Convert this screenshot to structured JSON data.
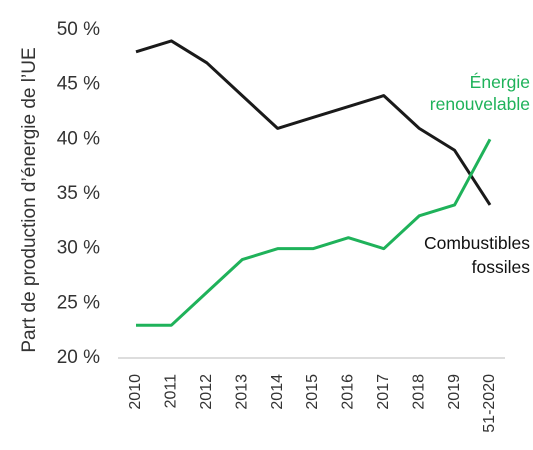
{
  "chart_data": {
    "type": "line",
    "y_label": "Part de production d’énergie de l’UE",
    "categories": [
      "2010",
      "2011",
      "2012",
      "2013",
      "2014",
      "2015",
      "2016",
      "2017",
      "2018",
      "2019",
      "51-2020"
    ],
    "series": [
      {
        "name": "Combustibles fossiles",
        "color": "#1a1a1a",
        "values": [
          48,
          49,
          47,
          44,
          41,
          42,
          43,
          44,
          41,
          39,
          34
        ]
      },
      {
        "name": "Énergie renouvelable",
        "color": "#1fb25a",
        "values": [
          23,
          23,
          26,
          29,
          30,
          30,
          31,
          30,
          33,
          34,
          40
        ]
      }
    ],
    "ylim": [
      20,
      50
    ],
    "yticks": [
      {
        "value": 20,
        "label": "20 %"
      },
      {
        "value": 25,
        "label": "25 %"
      },
      {
        "value": 30,
        "label": "30 %"
      },
      {
        "value": 35,
        "label": "35 %"
      },
      {
        "value": 40,
        "label": "40 %"
      },
      {
        "value": 45,
        "label": "45 %"
      },
      {
        "value": 50,
        "label": "50 %"
      }
    ],
    "grid": false
  }
}
